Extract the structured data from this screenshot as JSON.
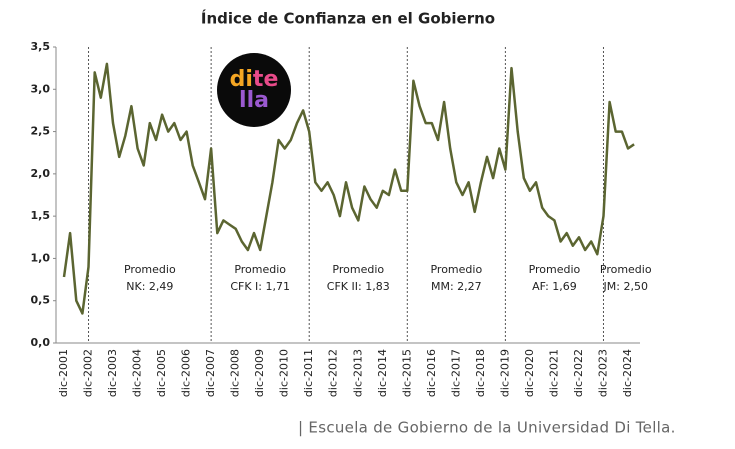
{
  "chart_data": {
    "type": "line",
    "title": "Índice de Confianza en el Gobierno",
    "categories": [
      "dic-2001",
      null,
      null,
      null,
      "dic-2002",
      null,
      null,
      null,
      "dic-2003",
      null,
      null,
      null,
      "dic-2004",
      null,
      null,
      null,
      "dic-2005",
      null,
      null,
      null,
      "dic-2006",
      null,
      null,
      null,
      "dic-2007",
      null,
      null,
      null,
      "dic-2008",
      null,
      null,
      null,
      "dic-2009",
      null,
      null,
      null,
      "dic-2010",
      null,
      null,
      null,
      "dic-2011",
      null,
      null,
      null,
      "dic-2012",
      null,
      null,
      null,
      "dic-2013",
      null,
      null,
      null,
      "dic-2014",
      null,
      null,
      null,
      "dic-2015",
      null,
      null,
      null,
      "dic-2016",
      null,
      null,
      null,
      "dic-2017",
      null,
      null,
      null,
      "dic-2018",
      null,
      null,
      null,
      "dic-2019",
      null,
      null,
      null,
      "dic-2020",
      null,
      null,
      null,
      "dic-2021",
      null,
      null,
      null,
      "dic-2022",
      null,
      null,
      null,
      "dic-2023",
      null,
      null,
      null,
      "dic-2024",
      null
    ],
    "values": [
      0.78,
      1.3,
      0.5,
      0.35,
      0.9,
      3.2,
      2.9,
      3.3,
      2.6,
      2.2,
      2.45,
      2.8,
      2.3,
      2.1,
      2.6,
      2.4,
      2.7,
      2.5,
      2.6,
      2.4,
      2.5,
      2.1,
      1.9,
      1.7,
      2.3,
      1.3,
      1.45,
      1.4,
      1.35,
      1.2,
      1.1,
      1.3,
      1.1,
      1.5,
      1.9,
      2.4,
      2.3,
      2.4,
      2.6,
      2.75,
      2.5,
      1.9,
      1.8,
      1.9,
      1.75,
      1.5,
      1.9,
      1.6,
      1.45,
      1.85,
      1.7,
      1.6,
      1.8,
      1.75,
      2.05,
      1.8,
      1.8,
      3.1,
      2.8,
      2.6,
      2.6,
      2.4,
      2.85,
      2.3,
      1.9,
      1.75,
      1.9,
      1.55,
      1.9,
      2.2,
      1.95,
      2.3,
      2.05,
      3.25,
      2.5,
      1.95,
      1.8,
      1.9,
      1.6,
      1.5,
      1.45,
      1.2,
      1.3,
      1.15,
      1.25,
      1.1,
      1.2,
      1.05,
      1.5,
      2.85,
      2.5,
      2.5,
      2.3,
      2.35
    ],
    "color": "#5b6531",
    "ylim": [
      0,
      3.5
    ],
    "yticks": [
      {
        "value": 0,
        "label": "0,0"
      },
      {
        "value": 0.5,
        "label": "0,5"
      },
      {
        "value": 1,
        "label": "1,0"
      },
      {
        "value": 1.5,
        "label": "1,5"
      },
      {
        "value": 2,
        "label": "2,0"
      },
      {
        "value": 2.5,
        "label": "2,5"
      },
      {
        "value": 3,
        "label": "3,0"
      },
      {
        "value": 3.5,
        "label": "3,5"
      }
    ],
    "grid": false,
    "periods": [
      {
        "start": "dic-2002",
        "title": "Promedio",
        "label": "NK: 2,49"
      },
      {
        "start": "dic-2007",
        "title": "Promedio",
        "label": "CFK I: 1,71"
      },
      {
        "start": "dic-2011",
        "title": "Promedio",
        "label": "CFK II: 1,83"
      },
      {
        "start": "dic-2015",
        "title": "Promedio",
        "label": "MM: 2,27"
      },
      {
        "start": "dic-2019",
        "title": "Promedio",
        "label": "AF: 1,69"
      },
      {
        "start": "dic-2023",
        "title": "Promedio",
        "label": "JM: 2,50"
      }
    ]
  },
  "logo": {
    "line1a": "di",
    "line1b": "te",
    "line2": "lla"
  },
  "caption": "| Escuela de Gobierno de la Universidad Di Tella."
}
